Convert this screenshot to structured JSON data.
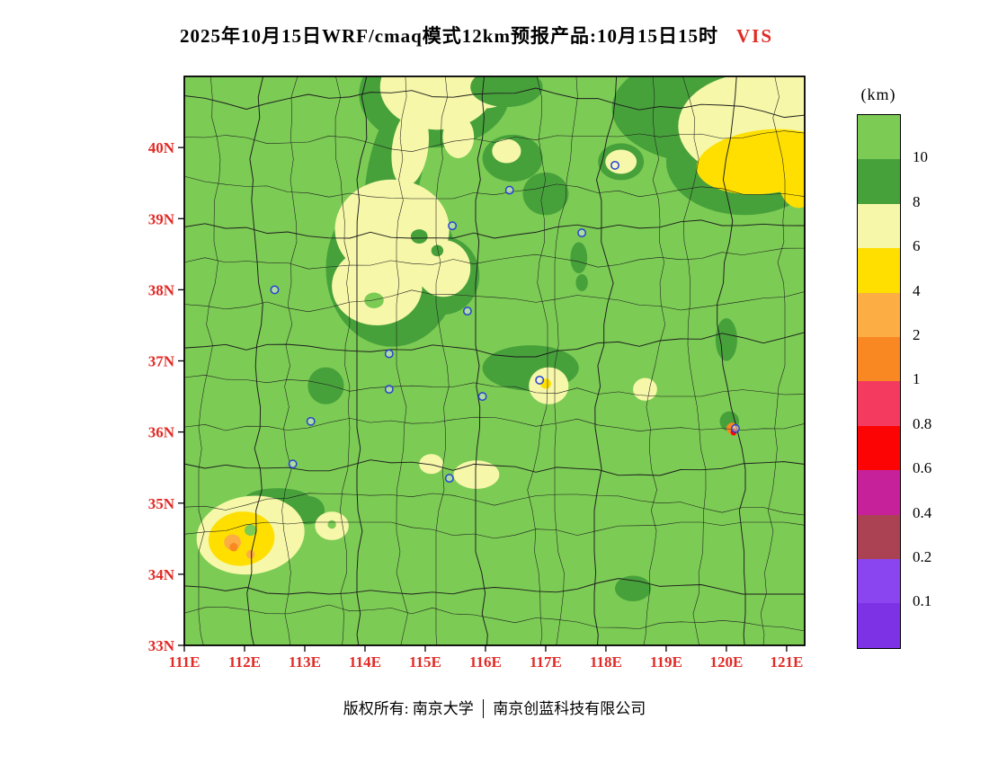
{
  "title": {
    "main": "2025年10月15日WRF/cmaq模式12km预报产品:10月15日15时",
    "variable": "VIS"
  },
  "footer": {
    "left": "版权所有: 南京大学",
    "right": "南京创蓝科技有限公司"
  },
  "legend": {
    "unit": "(km)",
    "labels": [
      "10",
      "8",
      "6",
      "4",
      "2",
      "1",
      "0.8",
      "0.6",
      "0.4",
      "0.2",
      "0.1"
    ],
    "colors": [
      "#7ccb55",
      "#47a13b",
      "#f6f7a8",
      "#ffdf00",
      "#fcad44",
      "#f98722",
      "#f43a5f",
      "#fd0404",
      "#c7209b",
      "#ab4253",
      "#8a45f0",
      "#7d32e6"
    ]
  },
  "axes": {
    "x_tick_labels": [
      "111E",
      "112E",
      "113E",
      "114E",
      "115E",
      "116E",
      "117E",
      "118E",
      "119E",
      "120E",
      "121E"
    ],
    "y_tick_labels": [
      "40N",
      "39N",
      "38N",
      "37N",
      "36N",
      "35N",
      "34N",
      "33N"
    ],
    "label_color": "#e12b26"
  },
  "map": {
    "bounds": {
      "lon_min": 111,
      "lon_max": 121.3,
      "lat_min": 33,
      "lat_max": 41
    },
    "palette": {
      "bg": "#7ccb55",
      "dg": "#47a13b",
      "py": "#f6f7a8",
      "yl": "#ffdf00",
      "lo": "#fcad44",
      "or": "#f98722",
      "rd": "#fd0404"
    },
    "boundary_color": "#1c1c1c",
    "station_color": "#2743cf",
    "features": [
      [
        "dg",
        115.15,
        40.75,
        1.25,
        0.75,
        0
      ],
      [
        "dg",
        114.5,
        39.7,
        0.45,
        1.05,
        12
      ],
      [
        "py",
        115.2,
        40.85,
        0.95,
        0.6,
        0
      ],
      [
        "py",
        116.0,
        41.0,
        0.55,
        0.45,
        0
      ],
      [
        "py",
        114.75,
        40.0,
        0.3,
        0.55,
        8
      ],
      [
        "py",
        115.55,
        40.15,
        0.26,
        0.3,
        0
      ],
      [
        "dg",
        114.45,
        38.3,
        1.1,
        1.1,
        0
      ],
      [
        "dg",
        115.3,
        38.2,
        0.6,
        0.55,
        0
      ],
      [
        "py",
        114.45,
        38.85,
        0.95,
        0.7,
        0
      ],
      [
        "py",
        114.2,
        38.05,
        0.75,
        0.55,
        0
      ],
      [
        "py",
        115.3,
        38.3,
        0.45,
        0.4,
        0
      ],
      [
        "dg",
        114.9,
        38.75,
        0.14,
        0.1,
        0
      ],
      [
        "dg",
        115.2,
        38.55,
        0.1,
        0.08,
        0
      ],
      [
        "bg",
        114.15,
        37.85,
        0.16,
        0.11,
        0
      ],
      [
        "dg",
        119.85,
        40.55,
        1.75,
        0.8,
        0
      ],
      [
        "dg",
        120.3,
        39.8,
        1.3,
        0.75,
        0
      ],
      [
        "py",
        120.5,
        40.3,
        1.3,
        0.75,
        0
      ],
      [
        "py",
        121.0,
        40.8,
        0.8,
        0.5,
        0
      ],
      [
        "yl",
        120.65,
        39.8,
        1.15,
        0.45,
        -6
      ],
      [
        "yl",
        121.2,
        39.6,
        0.35,
        0.45,
        0
      ],
      [
        "dg",
        116.35,
        40.85,
        0.6,
        0.28,
        0
      ],
      [
        "dg",
        116.45,
        39.85,
        0.5,
        0.33,
        0
      ],
      [
        "py",
        116.35,
        39.95,
        0.24,
        0.17,
        0
      ],
      [
        "dg",
        117.0,
        39.35,
        0.38,
        0.3,
        0
      ],
      [
        "dg",
        118.25,
        39.8,
        0.38,
        0.26,
        0
      ],
      [
        "py",
        118.25,
        39.8,
        0.26,
        0.17,
        0
      ],
      [
        "dg",
        117.55,
        38.45,
        0.14,
        0.22,
        0
      ],
      [
        "dg",
        117.6,
        38.1,
        0.1,
        0.12,
        0
      ],
      [
        "dg",
        116.75,
        36.9,
        0.8,
        0.32,
        0
      ],
      [
        "py",
        117.05,
        36.65,
        0.33,
        0.26,
        0
      ],
      [
        "yl",
        117.0,
        36.68,
        0.09,
        0.07,
        0
      ],
      [
        "py",
        118.65,
        36.6,
        0.2,
        0.16,
        0
      ],
      [
        "dg",
        120.0,
        37.3,
        0.18,
        0.3,
        0
      ],
      [
        "dg",
        113.35,
        36.65,
        0.3,
        0.26,
        0
      ],
      [
        "dg",
        113.05,
        34.9,
        0.28,
        0.2,
        0
      ],
      [
        "dg",
        112.5,
        34.95,
        0.12,
        0.1,
        0
      ],
      [
        "dg",
        112.55,
        35.05,
        0.55,
        0.16,
        0
      ],
      [
        "py",
        112.1,
        34.55,
        0.9,
        0.55,
        -8
      ],
      [
        "yl",
        111.95,
        34.5,
        0.55,
        0.38,
        -8
      ],
      [
        "bg",
        112.1,
        34.62,
        0.1,
        0.08,
        0
      ],
      [
        "lo",
        111.8,
        34.45,
        0.14,
        0.11,
        0
      ],
      [
        "or",
        111.82,
        34.38,
        0.07,
        0.06,
        0
      ],
      [
        "lo",
        112.1,
        34.28,
        0.07,
        0.06,
        0
      ],
      [
        "py",
        113.45,
        34.68,
        0.28,
        0.2,
        0
      ],
      [
        "bg",
        113.45,
        34.7,
        0.07,
        0.06,
        0
      ],
      [
        "py",
        115.85,
        35.4,
        0.38,
        0.2,
        0
      ],
      [
        "py",
        115.1,
        35.55,
        0.2,
        0.14,
        0
      ],
      [
        "dg",
        118.45,
        33.8,
        0.3,
        0.18,
        0
      ],
      [
        "dg",
        120.05,
        36.15,
        0.16,
        0.14,
        0
      ],
      [
        "or",
        120.1,
        36.05,
        0.1,
        0.08,
        0
      ],
      [
        "rd",
        120.12,
        36.0,
        0.05,
        0.05,
        0
      ]
    ],
    "stations": [
      [
        115.45,
        38.9
      ],
      [
        116.4,
        39.4
      ],
      [
        118.15,
        39.75
      ],
      [
        112.5,
        38.0
      ],
      [
        115.7,
        37.7
      ],
      [
        114.4,
        37.1
      ],
      [
        114.4,
        36.6
      ],
      [
        115.95,
        36.5
      ],
      [
        116.9,
        36.73
      ],
      [
        113.1,
        36.15
      ],
      [
        112.8,
        35.55
      ],
      [
        115.4,
        35.35
      ],
      [
        120.15,
        36.05
      ],
      [
        117.6,
        38.8
      ]
    ]
  },
  "chart_data": {
    "type": "heatmap",
    "title": "2025年10月15日WRF/cmaq模式12km预报产品:10月15日15时 VIS",
    "variable": "VIS",
    "unit": "km",
    "levels": [
      0.1,
      0.2,
      0.4,
      0.6,
      0.8,
      1,
      2,
      4,
      6,
      8,
      10
    ],
    "xlabel_ticks": [
      "111E",
      "112E",
      "113E",
      "114E",
      "115E",
      "116E",
      "117E",
      "118E",
      "119E",
      "120E",
      "121E"
    ],
    "ylabel_ticks": [
      "33N",
      "34N",
      "35N",
      "36N",
      "37N",
      "38N",
      "39N",
      "40N"
    ],
    "legend_position": "right",
    "dominant_value": ">10 km (light green) over most of domain; 6-8 km patches in central Hebei, north edge and southwest corner; 4-6 km core northeast corner and southwest corner; small 2-4 km spots in southwest"
  }
}
